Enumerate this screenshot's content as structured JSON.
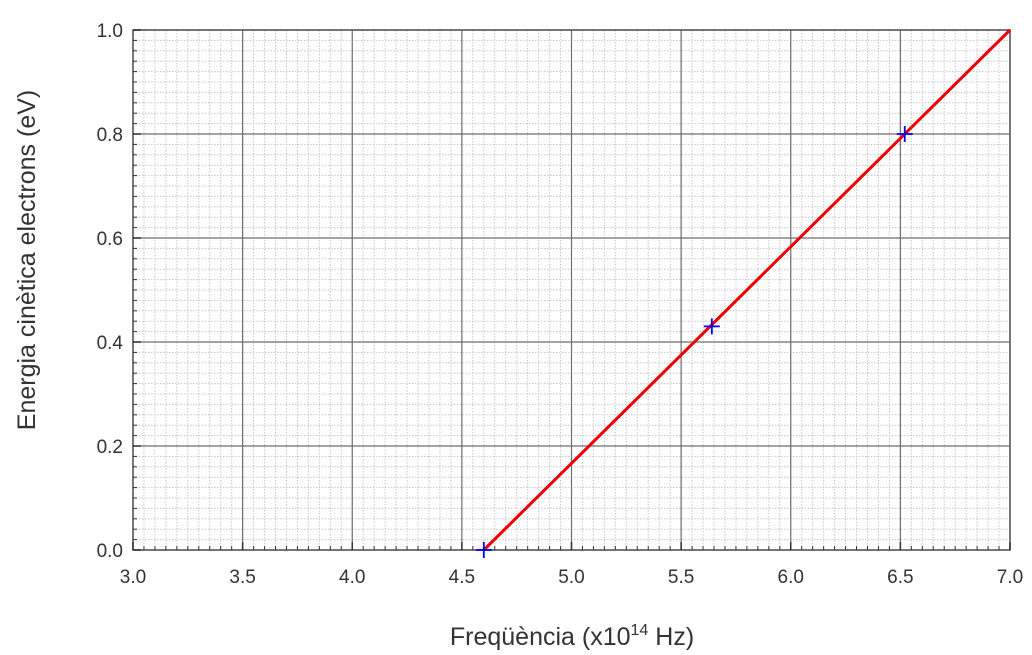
{
  "chart_data": {
    "type": "line",
    "title": "",
    "xlabel_main": "Freqüència (x10",
    "xlabel_exp": "14",
    "xlabel_unit": " Hz)",
    "ylabel": "Energia cinètica electrons (eV)",
    "xlim": [
      3.0,
      7.0
    ],
    "ylim": [
      0.0,
      1.0
    ],
    "x_ticks": [
      "3.0",
      "3.5",
      "4.0",
      "4.5",
      "5.0",
      "5.5",
      "6.0",
      "6.5",
      "7.0"
    ],
    "y_ticks": [
      "0.0",
      "0.2",
      "0.4",
      "0.6",
      "0.8",
      "1.0"
    ],
    "grid": true,
    "series": [
      {
        "kind": "scatter",
        "marker": "plus",
        "color": "#0000ff",
        "x": [
          4.6,
          5.64,
          6.52
        ],
        "y": [
          0.0,
          0.43,
          0.8
        ]
      },
      {
        "kind": "line",
        "color": "#ee0000",
        "x": [
          4.6,
          7.0
        ],
        "y": [
          0.0,
          1.0
        ]
      }
    ]
  }
}
